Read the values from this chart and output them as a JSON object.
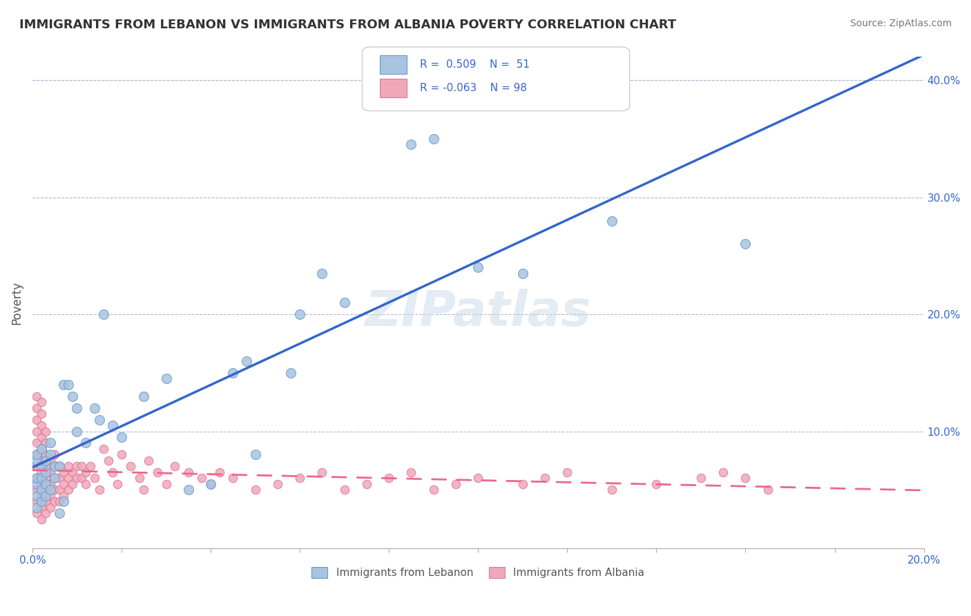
{
  "title": "IMMIGRANTS FROM LEBANON VS IMMIGRANTS FROM ALBANIA POVERTY CORRELATION CHART",
  "source": "Source: ZipAtlas.com",
  "xlabel": "",
  "ylabel": "Poverty",
  "xlim": [
    0.0,
    0.2
  ],
  "ylim": [
    0.0,
    0.42
  ],
  "xticks": [
    0.0,
    0.02,
    0.04,
    0.06,
    0.08,
    0.1,
    0.12,
    0.14,
    0.16,
    0.18,
    0.2
  ],
  "xticklabels": [
    "0.0%",
    "",
    "",
    "",
    "",
    "",
    "",
    "",
    "",
    "",
    "20.0%"
  ],
  "yticks_right": [
    0.1,
    0.2,
    0.3,
    0.4
  ],
  "ytick_labels_right": [
    "10.0%",
    "20.0%",
    "30.0%",
    "40.0%"
  ],
  "legend_r1": "R =  0.509",
  "legend_n1": "N =  51",
  "legend_r2": "R = -0.063",
  "legend_n2": "N = 98",
  "lebanon_color": "#a8c4e0",
  "albania_color": "#f0a8b8",
  "lebanon_edge": "#6699cc",
  "albania_edge": "#dd7799",
  "regression_lebanon_color": "#3366cc",
  "regression_albania_color": "#ee6688",
  "watermark": "ZIPatlas",
  "watermark_color": "#c8d8e8",
  "lebanon_x": [
    0.001,
    0.001,
    0.001,
    0.001,
    0.001,
    0.001,
    0.002,
    0.002,
    0.002,
    0.002,
    0.002,
    0.003,
    0.003,
    0.003,
    0.003,
    0.004,
    0.004,
    0.004,
    0.005,
    0.005,
    0.006,
    0.006,
    0.007,
    0.007,
    0.008,
    0.009,
    0.01,
    0.01,
    0.012,
    0.014,
    0.015,
    0.016,
    0.018,
    0.02,
    0.025,
    0.03,
    0.035,
    0.04,
    0.045,
    0.048,
    0.05,
    0.058,
    0.06,
    0.065,
    0.07,
    0.085,
    0.09,
    0.1,
    0.11,
    0.13,
    0.16
  ],
  "lebanon_y": [
    0.035,
    0.045,
    0.055,
    0.06,
    0.075,
    0.08,
    0.04,
    0.05,
    0.06,
    0.07,
    0.085,
    0.045,
    0.055,
    0.065,
    0.075,
    0.05,
    0.08,
    0.09,
    0.06,
    0.07,
    0.03,
    0.07,
    0.04,
    0.14,
    0.14,
    0.13,
    0.12,
    0.1,
    0.09,
    0.12,
    0.11,
    0.2,
    0.105,
    0.095,
    0.13,
    0.145,
    0.05,
    0.055,
    0.15,
    0.16,
    0.08,
    0.15,
    0.2,
    0.235,
    0.21,
    0.345,
    0.35,
    0.24,
    0.235,
    0.28,
    0.26
  ],
  "albania_x": [
    0.001,
    0.001,
    0.001,
    0.001,
    0.001,
    0.001,
    0.001,
    0.001,
    0.001,
    0.001,
    0.001,
    0.002,
    0.002,
    0.002,
    0.002,
    0.002,
    0.002,
    0.002,
    0.002,
    0.002,
    0.002,
    0.002,
    0.003,
    0.003,
    0.003,
    0.003,
    0.003,
    0.003,
    0.003,
    0.003,
    0.004,
    0.004,
    0.004,
    0.004,
    0.004,
    0.005,
    0.005,
    0.005,
    0.005,
    0.005,
    0.006,
    0.006,
    0.006,
    0.006,
    0.007,
    0.007,
    0.007,
    0.008,
    0.008,
    0.008,
    0.009,
    0.009,
    0.01,
    0.01,
    0.011,
    0.011,
    0.012,
    0.012,
    0.013,
    0.014,
    0.015,
    0.016,
    0.017,
    0.018,
    0.019,
    0.02,
    0.022,
    0.024,
    0.025,
    0.026,
    0.028,
    0.03,
    0.032,
    0.035,
    0.038,
    0.04,
    0.042,
    0.045,
    0.05,
    0.055,
    0.06,
    0.065,
    0.07,
    0.075,
    0.08,
    0.085,
    0.09,
    0.095,
    0.1,
    0.11,
    0.115,
    0.12,
    0.13,
    0.14,
    0.15,
    0.155,
    0.16,
    0.165
  ],
  "albania_y": [
    0.03,
    0.04,
    0.05,
    0.06,
    0.07,
    0.08,
    0.09,
    0.1,
    0.11,
    0.12,
    0.13,
    0.025,
    0.035,
    0.045,
    0.055,
    0.065,
    0.075,
    0.085,
    0.095,
    0.105,
    0.115,
    0.125,
    0.03,
    0.04,
    0.05,
    0.06,
    0.07,
    0.08,
    0.09,
    0.1,
    0.035,
    0.045,
    0.055,
    0.065,
    0.075,
    0.04,
    0.05,
    0.06,
    0.07,
    0.08,
    0.04,
    0.05,
    0.06,
    0.07,
    0.045,
    0.055,
    0.065,
    0.05,
    0.06,
    0.07,
    0.055,
    0.065,
    0.06,
    0.07,
    0.06,
    0.07,
    0.065,
    0.055,
    0.07,
    0.06,
    0.05,
    0.085,
    0.075,
    0.065,
    0.055,
    0.08,
    0.07,
    0.06,
    0.05,
    0.075,
    0.065,
    0.055,
    0.07,
    0.065,
    0.06,
    0.055,
    0.065,
    0.06,
    0.05,
    0.055,
    0.06,
    0.065,
    0.05,
    0.055,
    0.06,
    0.065,
    0.05,
    0.055,
    0.06,
    0.055,
    0.06,
    0.065,
    0.05,
    0.055,
    0.06,
    0.065,
    0.06,
    0.05
  ]
}
